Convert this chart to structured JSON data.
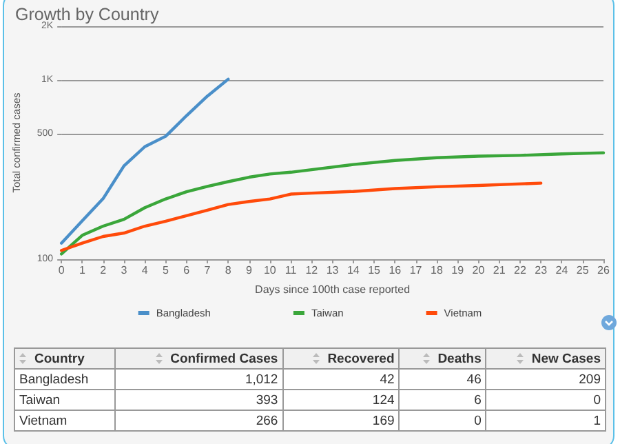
{
  "chart_data": [
    {
      "type": "line",
      "title": "Growth by Country",
      "xlabel": "Days since 100th case reported",
      "ylabel": "Total confirmed cases",
      "log": "y",
      "grid": "y",
      "legend": "bottom",
      "marker": "none",
      "line_style": "solid",
      "xlim": [
        0,
        26
      ],
      "xticks": [
        0,
        1,
        2,
        3,
        4,
        5,
        6,
        7,
        8,
        9,
        10,
        11,
        12,
        13,
        14,
        15,
        16,
        17,
        18,
        19,
        20,
        21,
        22,
        23,
        24,
        25,
        26
      ],
      "ylim": [
        100,
        2000
      ],
      "yticks": [
        100,
        500,
        {
          "value": 1000,
          "label": "1K"
        },
        {
          "value": 2000,
          "label": "2K"
        }
      ],
      "series": [
        {
          "name": "Bangladesh",
          "color": "#4a8fc9",
          "x": [
            0,
            1,
            2,
            3,
            4,
            5,
            6,
            7,
            8
          ],
          "values": [
            123,
            164,
            218,
            332,
            425,
            486,
            633,
            814,
            1012
          ]
        },
        {
          "name": "Taiwan",
          "color": "#3aa63a",
          "x": [
            0,
            1,
            2,
            3,
            4,
            5,
            6,
            7,
            8,
            9,
            10,
            11,
            12,
            14,
            16,
            18,
            20,
            22,
            24,
            26
          ],
          "values": [
            107,
            136,
            153,
            167,
            194,
            217,
            238,
            255,
            271,
            287,
            299,
            306,
            316,
            338,
            356,
            369,
            376,
            380,
            387,
            393
          ]
        },
        {
          "name": "Vietnam",
          "color": "#ff4a0a",
          "x": [
            0,
            1,
            2,
            3,
            4,
            5,
            6,
            7,
            8,
            9,
            10,
            11,
            12,
            14,
            16,
            18,
            20,
            23
          ],
          "values": [
            112,
            123,
            134,
            140,
            153,
            163,
            175,
            188,
            202,
            210,
            217,
            231,
            234,
            239,
            248,
            254,
            258,
            266
          ]
        }
      ]
    },
    {
      "type": "other",
      "xlabel": "Country",
      "categories": [
        "Bangladesh",
        "Taiwan",
        "Vietnam"
      ],
      "series": [
        {
          "name": "Confirmed Cases",
          "values": [
            1012,
            393,
            266
          ],
          "value_labels": [
            "1,012",
            "393",
            "266"
          ]
        },
        {
          "name": "Recovered",
          "values": [
            42,
            124,
            169
          ],
          "value_labels": [
            "42",
            "124",
            "169"
          ]
        },
        {
          "name": "Deaths",
          "values": [
            46,
            6,
            0
          ],
          "value_labels": [
            "46",
            "6",
            "0"
          ]
        },
        {
          "name": "New Cases",
          "values": [
            209,
            0,
            1
          ],
          "value_labels": [
            "209",
            "0",
            "1"
          ]
        }
      ]
    }
  ]
}
